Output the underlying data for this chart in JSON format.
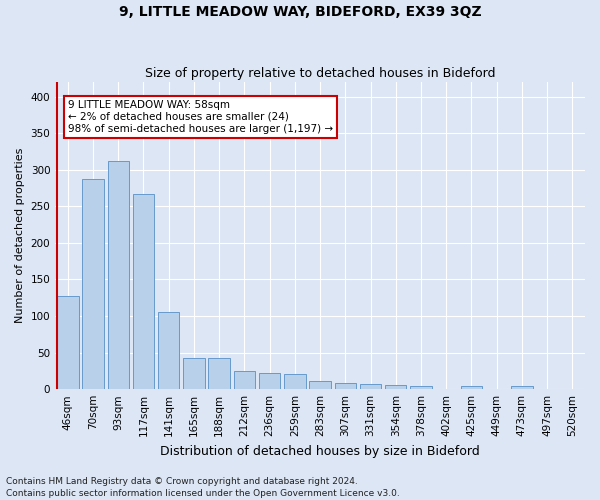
{
  "title": "9, LITTLE MEADOW WAY, BIDEFORD, EX39 3QZ",
  "subtitle": "Size of property relative to detached houses in Bideford",
  "xlabel": "Distribution of detached houses by size in Bideford",
  "ylabel": "Number of detached properties",
  "categories": [
    "46sqm",
    "70sqm",
    "93sqm",
    "117sqm",
    "141sqm",
    "165sqm",
    "188sqm",
    "212sqm",
    "236sqm",
    "259sqm",
    "283sqm",
    "307sqm",
    "331sqm",
    "354sqm",
    "378sqm",
    "402sqm",
    "425sqm",
    "449sqm",
    "473sqm",
    "497sqm",
    "520sqm"
  ],
  "values": [
    128,
    288,
    312,
    267,
    106,
    42,
    42,
    25,
    22,
    21,
    11,
    9,
    7,
    6,
    4,
    0,
    4,
    0,
    4,
    0,
    0
  ],
  "bar_color": "#b8d0ea",
  "bar_edge_color": "#6699cc",
  "highlight_line_color": "#cc0000",
  "annotation_text": "9 LITTLE MEADOW WAY: 58sqm\n← 2% of detached houses are smaller (24)\n98% of semi-detached houses are larger (1,197) →",
  "annotation_box_color": "#ffffff",
  "annotation_box_edge_color": "#cc0000",
  "ylim": [
    0,
    420
  ],
  "yticks": [
    0,
    50,
    100,
    150,
    200,
    250,
    300,
    350,
    400
  ],
  "background_color": "#dce6f5",
  "plot_bg_color": "#dce6f5",
  "footer_line1": "Contains HM Land Registry data © Crown copyright and database right 2024.",
  "footer_line2": "Contains public sector information licensed under the Open Government Licence v3.0.",
  "title_fontsize": 10,
  "subtitle_fontsize": 9,
  "xlabel_fontsize": 9,
  "ylabel_fontsize": 8,
  "tick_fontsize": 7.5,
  "annotation_fontsize": 7.5,
  "footer_fontsize": 6.5
}
